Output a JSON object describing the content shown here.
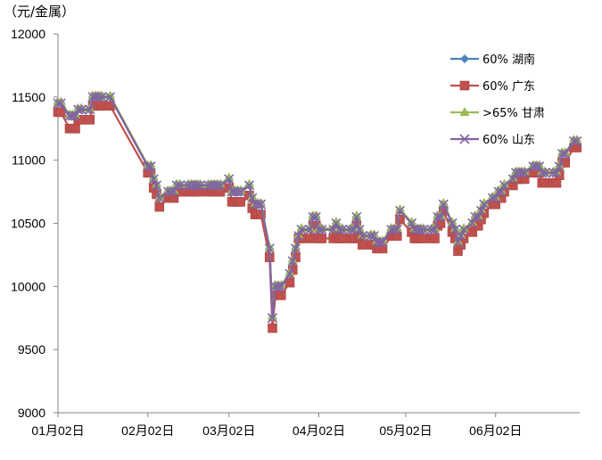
{
  "chart_data": {
    "type": "line",
    "unit_label": "（元/金属）",
    "ylim": [
      9000,
      12000
    ],
    "y_ticks": [
      9000,
      9500,
      10000,
      10500,
      11000,
      11500,
      12000
    ],
    "x_tick_labels": [
      "01月02日",
      "02月02日",
      "03月02日",
      "04月02日",
      "05月02日",
      "06月02日"
    ],
    "grid": false,
    "legend_position": "top-right",
    "x": [
      "01-02",
      "01-03",
      "01-06",
      "01-07",
      "01-08",
      "01-09",
      "01-10",
      "01-13",
      "01-14",
      "01-15",
      "01-16",
      "01-17",
      "01-20",
      "02-02",
      "02-03",
      "02-04",
      "02-05",
      "02-06",
      "02-09",
      "02-10",
      "02-11",
      "02-12",
      "02-13",
      "02-16",
      "02-17",
      "02-18",
      "02-19",
      "02-20",
      "02-23",
      "02-24",
      "02-25",
      "02-26",
      "02-27",
      "03-02",
      "03-03",
      "03-04",
      "03-05",
      "03-06",
      "03-09",
      "03-10",
      "03-11",
      "03-12",
      "03-13",
      "03-16",
      "03-17",
      "03-18",
      "03-19",
      "03-20",
      "03-23",
      "03-24",
      "03-25",
      "03-26",
      "03-27",
      "03-30",
      "03-31",
      "04-01",
      "04-02",
      "04-03",
      "04-07",
      "04-08",
      "04-09",
      "04-10",
      "04-13",
      "04-14",
      "04-15",
      "04-16",
      "04-17",
      "04-20",
      "04-21",
      "04-22",
      "04-23",
      "04-24",
      "04-27",
      "04-28",
      "04-29",
      "04-30",
      "05-04",
      "05-05",
      "05-06",
      "05-07",
      "05-08",
      "05-11",
      "05-12",
      "05-13",
      "05-14",
      "05-15",
      "05-18",
      "05-19",
      "05-20",
      "05-21",
      "05-22",
      "05-25",
      "05-26",
      "05-27",
      "05-28",
      "05-29",
      "06-01",
      "06-02",
      "06-03",
      "06-04",
      "06-05",
      "06-08",
      "06-09",
      "06-10",
      "06-11",
      "06-12",
      "06-15",
      "06-16",
      "06-17",
      "06-18",
      "06-19",
      "06-22",
      "06-23",
      "06-24",
      "06-25",
      "06-26",
      "06-29",
      "06-30"
    ],
    "series": [
      {
        "name": "60% 湖南",
        "color": "#4F81BD",
        "marker": "diamond",
        "values": [
          11450,
          11450,
          11350,
          11350,
          11350,
          11400,
          11400,
          11400,
          11500,
          11500,
          11500,
          11500,
          11500,
          10950,
          10950,
          10850,
          10800,
          10700,
          10750,
          10750,
          10750,
          10800,
          10800,
          10800,
          10800,
          10800,
          10800,
          10800,
          10800,
          10800,
          10800,
          10800,
          10800,
          10850,
          10750,
          10750,
          10750,
          10750,
          10800,
          10700,
          10650,
          10650,
          10650,
          10300,
          9750,
          10000,
          10000,
          10000,
          10100,
          10200,
          10300,
          10400,
          10450,
          10450,
          10550,
          10550,
          10450,
          10450,
          10450,
          10500,
          10450,
          10450,
          10450,
          10450,
          10550,
          10450,
          10400,
          10400,
          10400,
          10350,
          10350,
          10350,
          10450,
          10450,
          10450,
          10600,
          10500,
          10450,
          10450,
          10450,
          10450,
          10450,
          10450,
          10550,
          10550,
          10650,
          10500,
          10450,
          10350,
          10400,
          10450,
          10500,
          10550,
          10550,
          10600,
          10650,
          10700,
          10700,
          10750,
          10750,
          10800,
          10850,
          10900,
          10900,
          10900,
          10900,
          10950,
          10950,
          10950,
          10900,
          10900,
          10900,
          10900,
          10950,
          11050,
          11050,
          11150,
          11150
        ]
      },
      {
        "name": "60% 广东",
        "color": "#C0504D",
        "marker": "square",
        "values": [
          11380,
          11380,
          11250,
          11250,
          11250,
          11320,
          11320,
          11320,
          11430,
          11430,
          11430,
          11430,
          11430,
          10900,
          10900,
          10780,
          10730,
          10630,
          10700,
          10700,
          10700,
          10750,
          10750,
          10750,
          10750,
          10750,
          10750,
          10750,
          10750,
          10750,
          10750,
          10750,
          10750,
          10780,
          10670,
          10670,
          10670,
          10670,
          10720,
          10620,
          10570,
          10570,
          10570,
          10230,
          9670,
          9930,
          9930,
          9930,
          10030,
          10130,
          10230,
          10380,
          10380,
          10380,
          10480,
          10480,
          10380,
          10380,
          10380,
          10430,
          10380,
          10380,
          10380,
          10380,
          10480,
          10380,
          10330,
          10330,
          10330,
          10300,
          10300,
          10300,
          10400,
          10400,
          10400,
          10530,
          10430,
          10380,
          10380,
          10380,
          10380,
          10380,
          10380,
          10480,
          10500,
          10600,
          10430,
          10380,
          10280,
          10330,
          10380,
          10430,
          10480,
          10480,
          10530,
          10580,
          10650,
          10650,
          10700,
          10700,
          10750,
          10800,
          10850,
          10850,
          10850,
          10850,
          10900,
          10900,
          10900,
          10820,
          10820,
          10820,
          10820,
          10880,
          10980,
          10980,
          11100,
          11100
        ]
      },
      {
        "name": ">65% 甘肃",
        "color": "#9BBB59",
        "marker": "triangle",
        "values": [
          11460,
          11460,
          11360,
          11360,
          11360,
          11410,
          11410,
          11410,
          11510,
          11510,
          11510,
          11510,
          11510,
          10960,
          10960,
          10860,
          10810,
          10710,
          10760,
          10760,
          10760,
          10810,
          10810,
          10810,
          10810,
          10810,
          10810,
          10810,
          10810,
          10810,
          10810,
          10810,
          10810,
          10860,
          10760,
          10760,
          10760,
          10760,
          10810,
          10710,
          10660,
          10660,
          10660,
          10310,
          9760,
          10010,
          10010,
          10010,
          10110,
          10210,
          10310,
          10410,
          10460,
          10460,
          10560,
          10560,
          10460,
          10460,
          10460,
          10510,
          10460,
          10460,
          10460,
          10460,
          10560,
          10460,
          10410,
          10410,
          10410,
          10360,
          10360,
          10360,
          10460,
          10460,
          10460,
          10610,
          10510,
          10460,
          10460,
          10460,
          10460,
          10460,
          10460,
          10560,
          10560,
          10660,
          10510,
          10460,
          10360,
          10410,
          10460,
          10510,
          10560,
          10560,
          10610,
          10660,
          10710,
          10710,
          10760,
          10760,
          10810,
          10860,
          10910,
          10910,
          10910,
          10910,
          10960,
          10960,
          10960,
          10910,
          10910,
          10910,
          10910,
          10960,
          11060,
          11060,
          11160,
          11160
        ]
      },
      {
        "name": "60% 山东",
        "color": "#8064A2",
        "marker": "x",
        "values": [
          11450,
          11450,
          11350,
          11350,
          11350,
          11400,
          11400,
          11400,
          11500,
          11500,
          11500,
          11500,
          11500,
          10950,
          10950,
          10850,
          10800,
          10700,
          10750,
          10750,
          10750,
          10800,
          10800,
          10800,
          10800,
          10800,
          10800,
          10800,
          10800,
          10800,
          10800,
          10800,
          10800,
          10850,
          10750,
          10750,
          10750,
          10750,
          10800,
          10700,
          10650,
          10650,
          10650,
          10300,
          9750,
          10000,
          10000,
          10000,
          10100,
          10200,
          10300,
          10400,
          10450,
          10450,
          10550,
          10550,
          10450,
          10450,
          10450,
          10500,
          10450,
          10450,
          10450,
          10450,
          10550,
          10450,
          10400,
          10400,
          10400,
          10350,
          10350,
          10350,
          10450,
          10450,
          10450,
          10600,
          10500,
          10450,
          10450,
          10450,
          10450,
          10450,
          10450,
          10550,
          10550,
          10650,
          10500,
          10450,
          10350,
          10400,
          10450,
          10500,
          10550,
          10550,
          10600,
          10650,
          10700,
          10700,
          10750,
          10750,
          10800,
          10850,
          10900,
          10900,
          10900,
          10900,
          10950,
          10950,
          10950,
          10900,
          10900,
          10900,
          10900,
          10950,
          11050,
          11050,
          11150,
          11150
        ]
      }
    ]
  }
}
